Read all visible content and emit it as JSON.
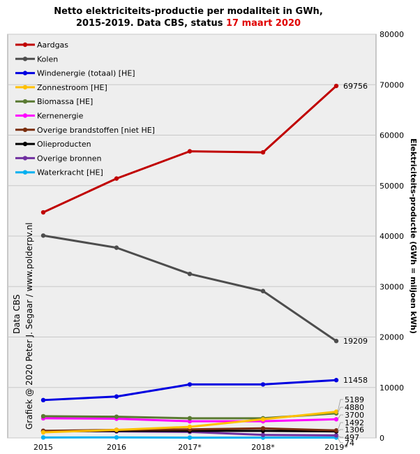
{
  "chart_data": {
    "type": "line",
    "title_line1": "Netto elektriciteits-productie  per modaliteit  in GWh,",
    "title_line2_prefix": "2015-2019.  Data CBS, status ",
    "title_line2_date": "17 maart 2020",
    "title_date_color": "#e00000",
    "ylabel": "Elektriciteits-productie (GWh = miljoen kWh)",
    "side_text": "Grafiek @ 2020  Peter J. Segaar / www.polderpv.nl",
    "side_text2": "Data CBS",
    "x": [
      "2015",
      "2016",
      "2017*",
      "2018*",
      "2019*"
    ],
    "ylim": [
      0,
      80000
    ],
    "yticks": [
      "0",
      "10000",
      "20000",
      "30000",
      "40000",
      "50000",
      "60000",
      "70000",
      "80000"
    ],
    "y_axis_side": "right",
    "grid": true,
    "legend_position": "top-left",
    "series": [
      {
        "name": "Aardgas",
        "color": "#c00000",
        "values": [
          44700,
          51400,
          56800,
          56600,
          69756
        ]
      },
      {
        "name": "Kolen",
        "color": "#4d4d4d",
        "values": [
          40100,
          37700,
          32500,
          29100,
          19209
        ]
      },
      {
        "name": "Windenergie (totaal) [HE]",
        "color": "#0000e0",
        "values": [
          7500,
          8200,
          10600,
          10600,
          11458
        ]
      },
      {
        "name": "Zonnestroom [HE]",
        "color": "#ffc000",
        "values": [
          1100,
          1600,
          2200,
          3700,
          5189
        ]
      },
      {
        "name": "Biomassa [HE]",
        "color": "#5a7a32",
        "values": [
          4300,
          4200,
          3900,
          3900,
          4880
        ]
      },
      {
        "name": "Kernenergie",
        "color": "#ff00ff",
        "values": [
          3900,
          3800,
          3300,
          3300,
          3700
        ]
      },
      {
        "name": "Overige brandstoffen [niet HE]",
        "color": "#7a2e0e",
        "values": [
          1400,
          1600,
          1700,
          1900,
          1492
        ]
      },
      {
        "name": "Olieproducten",
        "color": "#000000",
        "values": [
          1300,
          1400,
          1400,
          1400,
          1306
        ]
      },
      {
        "name": "Overige bronnen",
        "color": "#7030a0",
        "values": [
          1400,
          1300,
          1200,
          600,
          497
        ]
      },
      {
        "name": "Waterkracht [HE]",
        "color": "#00b0f0",
        "values": [
          90,
          100,
          60,
          70,
          74
        ]
      }
    ],
    "end_labels": [
      "69756",
      "19209",
      "11458",
      "5189",
      "4880",
      "3700",
      "1492",
      "1306",
      "497",
      "74"
    ]
  }
}
